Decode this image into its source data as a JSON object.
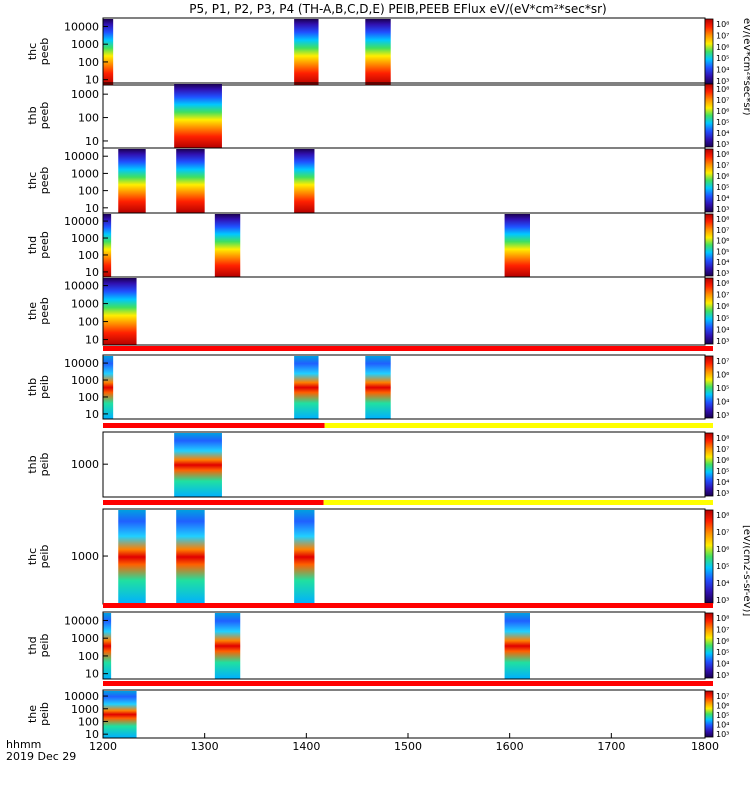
{
  "title": "P5, P1, P2, P3, P4 (TH-A,B,C,D,E) PEIB,PEEB EFlux eV/(eV*cm²*sec*sr)",
  "footer": {
    "label": "hhmm",
    "date": "2019 Dec 29"
  },
  "colorbar_title_electron": "eV/(eV*cm²*sec*sr)",
  "colorbar_title_ion": "[eV/(cm2-s-sr-eV)]",
  "colors": {
    "red_bar": "#ff0000",
    "yellow_bar": "#ffff00"
  },
  "chart_data": {
    "type": "heatmap",
    "x_range": [
      1200,
      1800
    ],
    "x_ticks": [
      1200,
      1300,
      1400,
      1500,
      1600,
      1700,
      1800
    ],
    "x_tick_labels": [
      "1200",
      "1300",
      "1400",
      "1500",
      "1600",
      "1700",
      "1800"
    ],
    "panels": [
      {
        "label": [
          "thc",
          "peeb"
        ],
        "y_ticks": [
          "10000",
          "1000",
          "100",
          "10"
        ],
        "cb_ticks": [
          "10⁸",
          "10⁷",
          "10⁶",
          "10⁵",
          "10⁴",
          "10³"
        ],
        "scale": "log",
        "yrange": [
          5,
          30000
        ],
        "intervals": [
          [
            1200,
            1210
          ],
          [
            1388,
            1412
          ],
          [
            1458,
            1483
          ]
        ]
      },
      {
        "label": [
          "thb",
          "peeb"
        ],
        "y_ticks": [
          "1000",
          "100",
          "10"
        ],
        "cb_ticks": [
          "10⁸",
          "10⁷",
          "10⁶",
          "10⁵",
          "10⁴",
          "10³"
        ],
        "scale": "log",
        "yrange": [
          5,
          3000
        ],
        "intervals": [
          [
            1270,
            1317
          ]
        ]
      },
      {
        "label": [
          "thc",
          "peeb"
        ],
        "y_ticks": [
          "10000",
          "1000",
          "100",
          "10"
        ],
        "cb_ticks": [
          "10⁸",
          "10⁷",
          "10⁶",
          "10⁵",
          "10⁴",
          "10³"
        ],
        "scale": "log",
        "yrange": [
          5,
          30000
        ],
        "intervals": [
          [
            1215,
            1242
          ],
          [
            1272,
            1300
          ],
          [
            1388,
            1408
          ]
        ]
      },
      {
        "label": [
          "thd",
          "peeb"
        ],
        "y_ticks": [
          "10000",
          "1000",
          "100",
          "10"
        ],
        "cb_ticks": [
          "10⁸",
          "10⁷",
          "10⁶",
          "10⁵",
          "10⁴",
          "10³"
        ],
        "scale": "log",
        "yrange": [
          5,
          30000
        ],
        "intervals": [
          [
            1200,
            1208
          ],
          [
            1310,
            1335
          ],
          [
            1595,
            1620
          ]
        ]
      },
      {
        "label": [
          "the",
          "peeb"
        ],
        "y_ticks": [
          "10000",
          "1000",
          "100",
          "10"
        ],
        "cb_ticks": [
          "10⁸",
          "10⁷",
          "10⁶",
          "10⁵",
          "10⁴",
          "10³"
        ],
        "scale": "log",
        "yrange": [
          5,
          30000
        ],
        "intervals": [
          [
            1200,
            1233
          ]
        ]
      },
      {
        "label": [
          "thb",
          "peib"
        ],
        "y_ticks": [
          "10000",
          "1000",
          "100",
          "10"
        ],
        "cb_ticks": [
          "10⁷",
          "10⁶",
          "10⁵",
          "10⁴",
          "10³"
        ],
        "scale": "log",
        "yrange": [
          5,
          30000
        ],
        "intervals": [
          [
            1200,
            1210
          ],
          [
            1388,
            1412
          ],
          [
            1458,
            1483
          ]
        ],
        "top_bar": [
          {
            "x": [
              1200,
              1800
            ],
            "color": "red"
          }
        ]
      },
      {
        "label": [
          "thb",
          "peib"
        ],
        "y_ticks": [
          "1000"
        ],
        "cb_ticks": [
          "10⁸",
          "10⁷",
          "10⁶",
          "10⁵",
          "10⁴",
          "10³"
        ],
        "scale": "log",
        "yrange": [
          120,
          8000
        ],
        "intervals": [
          [
            1270,
            1317
          ]
        ],
        "top_bar": [
          {
            "x": [
              1200,
              1418
            ],
            "color": "red"
          },
          {
            "x": [
              1418,
              1800
            ],
            "color": "yellow"
          }
        ]
      },
      {
        "label": [
          "thc",
          "peib"
        ],
        "y_ticks": [
          "1000"
        ],
        "cb_ticks": [
          "10⁸",
          "10⁷",
          "10⁶",
          "10⁵",
          "10⁴",
          "10³"
        ],
        "scale": "log",
        "yrange": [
          120,
          8000
        ],
        "intervals": [
          [
            1215,
            1242
          ],
          [
            1272,
            1300
          ],
          [
            1388,
            1408
          ]
        ],
        "top_bar": [
          {
            "x": [
              1200,
              1417
            ],
            "color": "red"
          },
          {
            "x": [
              1417,
              1800
            ],
            "color": "yellow"
          }
        ]
      },
      {
        "label": [
          "thd",
          "peib"
        ],
        "y_ticks": [
          "10000",
          "1000",
          "100",
          "10"
        ],
        "cb_ticks": [
          "10⁸",
          "10⁷",
          "10⁶",
          "10⁵",
          "10⁴",
          "10³"
        ],
        "scale": "log",
        "yrange": [
          5,
          30000
        ],
        "intervals": [
          [
            1200,
            1208
          ],
          [
            1310,
            1335
          ],
          [
            1595,
            1620
          ]
        ],
        "top_bar": [
          {
            "x": [
              1200,
              1800
            ],
            "color": "red"
          }
        ]
      },
      {
        "label": [
          "the",
          "peib"
        ],
        "y_ticks": [
          "10000",
          "1000",
          "100",
          "10"
        ],
        "cb_ticks": [
          "10⁷",
          "10⁶",
          "10⁵",
          "10⁴",
          "10³"
        ],
        "scale": "log",
        "yrange": [
          5,
          30000
        ],
        "intervals": [
          [
            1200,
            1233
          ]
        ],
        "top_bar": [
          {
            "x": [
              1200,
              1800
            ],
            "color": "red"
          }
        ]
      }
    ]
  }
}
